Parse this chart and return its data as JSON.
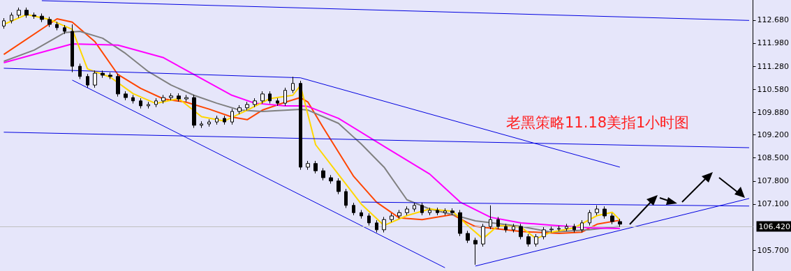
{
  "chart_data": {
    "type": "candlestick",
    "title": "老黑策略11.18美指1小时图",
    "marker": "none",
    "grid": false,
    "tick_labels": "y",
    "categories": [
      null,
      null,
      null,
      null,
      null,
      null,
      null,
      null,
      null,
      null,
      null,
      null,
      null,
      null,
      null,
      null,
      null,
      null,
      null,
      null,
      null,
      null,
      null,
      null,
      null,
      null,
      null,
      null,
      null,
      null,
      null,
      null,
      null,
      null,
      null,
      null,
      null,
      null,
      null,
      null,
      null,
      null,
      null,
      null,
      null,
      null,
      null,
      null,
      null,
      null,
      null,
      null,
      null,
      null,
      null,
      null,
      null,
      null,
      null,
      null,
      null,
      null,
      null,
      null,
      null,
      null,
      null,
      null,
      null,
      null,
      null,
      null,
      null,
      null,
      null,
      null,
      null,
      null,
      null,
      null,
      null,
      null,
      null,
      null,
      null,
      null,
      null,
      null,
      null,
      null,
      null,
      null,
      null,
      null,
      null,
      null,
      null,
      null,
      null
    ],
    "ylim": [
      105.07,
      113.29
    ],
    "yticks": [
      {
        "value": 112.68,
        "label": "112.680"
      },
      {
        "value": 111.98,
        "label": "111.980"
      },
      {
        "value": 111.28,
        "label": "111.280"
      },
      {
        "value": 110.58,
        "label": "110.580"
      },
      {
        "value": 109.88,
        "label": "109.880"
      },
      {
        "value": 109.2,
        "label": "109.200"
      },
      {
        "value": 108.5,
        "label": "108.500"
      },
      {
        "value": 107.8,
        "label": "107.800"
      },
      {
        "value": 107.1,
        "label": "107.100"
      },
      {
        "value": 105.7,
        "label": "105.700"
      }
    ],
    "ref_lines": [
      {
        "axis": "y",
        "value": 106.42,
        "label": "106.420",
        "color": "#c0c0c0"
      }
    ],
    "series": [
      {
        "color": "#000000",
        "ohlc": [
          [
            112.5,
            112.74,
            112.42,
            112.66
          ],
          [
            112.66,
            112.91,
            112.58,
            112.83
          ],
          [
            112.83,
            113.06,
            112.75,
            112.98
          ],
          [
            112.98,
            113.06,
            112.75,
            112.83
          ],
          [
            112.83,
            112.91,
            112.72,
            112.8
          ],
          [
            112.8,
            112.88,
            112.62,
            112.7
          ],
          [
            112.7,
            112.78,
            112.47,
            112.55
          ],
          [
            112.55,
            112.63,
            112.37,
            112.45
          ],
          [
            112.45,
            112.53,
            112.26,
            112.34
          ],
          [
            112.34,
            112.55,
            111.1,
            111.28
          ],
          [
            111.28,
            111.36,
            110.89,
            110.97
          ],
          [
            110.97,
            111.05,
            110.63,
            110.71
          ],
          [
            110.71,
            111.15,
            110.63,
            111.07
          ],
          [
            111.07,
            111.15,
            110.93,
            111.01
          ],
          [
            111.01,
            111.09,
            110.89,
            110.97
          ],
          [
            110.97,
            111.05,
            110.36,
            110.44
          ],
          [
            110.44,
            110.52,
            110.25,
            110.33
          ],
          [
            110.33,
            110.41,
            110.15,
            110.23
          ],
          [
            110.23,
            110.31,
            110.0,
            110.08
          ],
          [
            110.08,
            110.2,
            110.0,
            110.12
          ],
          [
            110.12,
            110.31,
            110.04,
            110.23
          ],
          [
            110.23,
            110.41,
            110.15,
            110.33
          ],
          [
            110.33,
            110.46,
            110.25,
            110.38
          ],
          [
            110.38,
            110.46,
            110.21,
            110.29
          ],
          [
            110.29,
            110.41,
            110.21,
            110.33
          ],
          [
            110.33,
            110.41,
            109.41,
            109.49
          ],
          [
            109.49,
            109.61,
            109.41,
            109.53
          ],
          [
            109.53,
            109.67,
            109.45,
            109.59
          ],
          [
            109.59,
            109.78,
            109.51,
            109.7
          ],
          [
            109.7,
            109.78,
            109.51,
            109.59
          ],
          [
            109.59,
            109.99,
            109.51,
            109.91
          ],
          [
            109.91,
            110.1,
            109.83,
            110.02
          ],
          [
            110.02,
            110.2,
            109.94,
            110.12
          ],
          [
            110.12,
            110.31,
            110.04,
            110.23
          ],
          [
            110.23,
            110.52,
            110.15,
            110.44
          ],
          [
            110.44,
            110.52,
            110.15,
            110.23
          ],
          [
            110.23,
            110.31,
            110.08,
            110.16
          ],
          [
            110.16,
            110.63,
            110.08,
            110.55
          ],
          [
            110.55,
            110.96,
            110.47,
            110.76
          ],
          [
            110.76,
            110.84,
            108.14,
            108.22
          ],
          [
            108.22,
            108.41,
            108.14,
            108.33
          ],
          [
            108.33,
            108.41,
            108.03,
            108.11
          ],
          [
            108.11,
            108.19,
            107.82,
            107.9
          ],
          [
            107.9,
            107.98,
            107.72,
            107.8
          ],
          [
            107.8,
            107.88,
            107.4,
            107.48
          ],
          [
            107.48,
            107.56,
            106.98,
            107.06
          ],
          [
            107.06,
            107.14,
            106.76,
            106.84
          ],
          [
            106.84,
            106.92,
            106.66,
            106.74
          ],
          [
            106.74,
            106.82,
            106.45,
            106.53
          ],
          [
            106.53,
            106.61,
            106.24,
            106.32
          ],
          [
            106.32,
            106.71,
            106.24,
            106.63
          ],
          [
            106.63,
            106.82,
            106.55,
            106.74
          ],
          [
            106.74,
            106.92,
            106.66,
            106.84
          ],
          [
            106.84,
            107.03,
            106.76,
            106.95
          ],
          [
            106.95,
            107.14,
            106.87,
            107.06
          ],
          [
            107.06,
            107.14,
            106.76,
            106.84
          ],
          [
            106.84,
            106.99,
            106.76,
            106.91
          ],
          [
            106.91,
            106.99,
            106.76,
            106.84
          ],
          [
            106.84,
            106.97,
            106.76,
            106.89
          ],
          [
            106.89,
            106.97,
            106.76,
            106.84
          ],
          [
            106.84,
            106.92,
            106.13,
            106.21
          ],
          [
            106.21,
            106.29,
            105.92,
            106.0
          ],
          [
            106.0,
            106.08,
            105.26,
            105.89
          ],
          [
            105.89,
            106.5,
            105.81,
            106.42
          ],
          [
            106.42,
            107.06,
            106.34,
            106.63
          ],
          [
            106.63,
            106.71,
            106.34,
            106.42
          ],
          [
            106.42,
            106.5,
            106.24,
            106.32
          ],
          [
            106.32,
            106.5,
            106.24,
            106.42
          ],
          [
            106.42,
            106.5,
            106.03,
            106.11
          ],
          [
            106.11,
            106.19,
            105.81,
            105.89
          ],
          [
            105.89,
            106.19,
            105.81,
            106.11
          ],
          [
            106.11,
            106.4,
            106.03,
            106.32
          ],
          [
            106.32,
            106.42,
            106.24,
            106.34
          ],
          [
            106.34,
            106.44,
            106.28,
            106.36
          ],
          [
            106.36,
            106.5,
            106.28,
            106.42
          ],
          [
            106.42,
            106.5,
            106.24,
            106.32
          ],
          [
            106.32,
            106.61,
            106.24,
            106.53
          ],
          [
            106.53,
            106.92,
            106.45,
            106.84
          ],
          [
            106.84,
            107.06,
            106.76,
            106.95
          ],
          [
            106.95,
            107.03,
            106.66,
            106.74
          ],
          [
            106.74,
            106.82,
            106.49,
            106.57
          ],
          [
            106.57,
            106.65,
            106.41,
            106.49
          ],
          null,
          null,
          null,
          null,
          null,
          null,
          null,
          null,
          null,
          null,
          null,
          null,
          null,
          null,
          null,
          null,
          null
        ]
      },
      {
        "type": "line",
        "color": "#ff4500",
        "values": [
          111.64,
          null,
          null,
          null,
          null,
          null,
          null,
          112.72,
          null,
          112.62,
          null,
          null,
          112.02,
          null,
          null,
          111.03,
          null,
          null,
          110.61,
          null,
          null,
          110.29,
          null,
          null,
          110.19,
          null,
          null,
          109.98,
          null,
          null,
          109.74,
          null,
          109.66,
          null,
          109.95,
          null,
          null,
          110.19,
          null,
          110.33,
          110.19,
          null,
          109.42,
          null,
          null,
          null,
          107.94,
          null,
          null,
          107.16,
          null,
          null,
          106.68,
          null,
          null,
          106.63,
          null,
          null,
          null,
          106.78,
          null,
          106.53,
          106.42,
          null,
          null,
          null,
          null,
          null,
          106.27,
          null,
          null,
          null,
          null,
          106.21,
          null,
          null,
          106.25,
          null,
          106.49,
          null,
          null,
          106.61,
          null,
          null,
          null,
          null,
          null,
          null,
          null,
          null,
          null,
          null,
          null,
          null,
          null,
          null,
          null,
          null,
          null
        ]
      },
      {
        "type": "line",
        "color": "#808080",
        "values": [
          111.43,
          null,
          null,
          null,
          111.77,
          null,
          null,
          null,
          112.3,
          null,
          112.34,
          null,
          null,
          112.13,
          null,
          null,
          111.67,
          null,
          null,
          111.12,
          null,
          null,
          110.71,
          null,
          null,
          110.4,
          null,
          null,
          110.16,
          null,
          null,
          109.95,
          null,
          null,
          109.91,
          null,
          null,
          null,
          null,
          109.97,
          109.95,
          null,
          null,
          null,
          109.55,
          null,
          null,
          108.92,
          null,
          null,
          108.22,
          null,
          null,
          107.23,
          null,
          null,
          106.95,
          null,
          null,
          106.78,
          null,
          null,
          106.59,
          null,
          null,
          null,
          null,
          null,
          106.42,
          null,
          null,
          null,
          106.25,
          null,
          null,
          null,
          null,
          106.32,
          null,
          null,
          null,
          106.42,
          null,
          null,
          null,
          null,
          null,
          null,
          null,
          null,
          null,
          null,
          null,
          null,
          null,
          null,
          null,
          null,
          null
        ]
      },
      {
        "type": "line",
        "color": "#ff00ff",
        "values": [
          111.39,
          null,
          null,
          null,
          111.64,
          null,
          null,
          null,
          null,
          111.96,
          null,
          null,
          null,
          null,
          null,
          111.92,
          null,
          null,
          null,
          null,
          null,
          111.54,
          null,
          null,
          null,
          111.03,
          null,
          null,
          null,
          null,
          110.4,
          null,
          null,
          110.16,
          null,
          null,
          null,
          110.08,
          null,
          110.08,
          110.06,
          null,
          null,
          null,
          109.7,
          null,
          null,
          null,
          null,
          null,
          108.85,
          null,
          null,
          null,
          null,
          null,
          108.01,
          null,
          null,
          null,
          107.16,
          null,
          null,
          null,
          106.7,
          null,
          null,
          null,
          106.53,
          null,
          null,
          null,
          106.46,
          null,
          null,
          null,
          null,
          106.38,
          null,
          null,
          null,
          106.36,
          null,
          null,
          null,
          null,
          null,
          null,
          null,
          null,
          null,
          null,
          null,
          null,
          null,
          null,
          null,
          null,
          null
        ]
      },
      {
        "type": "line",
        "color": "#ffd700",
        "values": [
          112.55,
          null,
          null,
          112.85,
          null,
          null,
          112.7,
          null,
          null,
          112.4,
          null,
          111.2,
          null,
          null,
          110.95,
          null,
          null,
          110.45,
          null,
          null,
          110.15,
          null,
          null,
          110.3,
          null,
          null,
          109.75,
          null,
          null,
          109.62,
          null,
          null,
          109.95,
          null,
          null,
          110.3,
          null,
          null,
          110.4,
          110.7,
          null,
          108.9,
          null,
          null,
          108.0,
          null,
          null,
          107.1,
          null,
          null,
          106.45,
          null,
          null,
          106.75,
          null,
          null,
          106.95,
          null,
          null,
          106.88,
          null,
          106.45,
          null,
          106.05,
          null,
          106.45,
          null,
          null,
          106.4,
          null,
          106.05,
          null,
          106.25,
          null,
          null,
          106.38,
          null,
          null,
          106.75,
          null,
          106.85,
          106.62,
          null,
          null,
          null,
          null,
          null,
          null,
          null,
          null,
          null,
          null,
          null,
          null,
          null,
          null,
          null,
          null,
          null
        ]
      },
      {
        "type": "line",
        "color": "#0000e0",
        "values": [
          null,
          null,
          null,
          null,
          null,
          113.27,
          null,
          null,
          null,
          null,
          null,
          null,
          null,
          null,
          null,
          null,
          null,
          null,
          null,
          null,
          null,
          null,
          null,
          null,
          null,
          null,
          null,
          null,
          null,
          null,
          null,
          null,
          null,
          null,
          null,
          null,
          null,
          null,
          null,
          null,
          null,
          null,
          null,
          null,
          null,
          null,
          null,
          null,
          null,
          null,
          null,
          null,
          null,
          null,
          null,
          null,
          null,
          null,
          null,
          null,
          null,
          null,
          null,
          null,
          null,
          null,
          null,
          null,
          null,
          null,
          null,
          null,
          null,
          null,
          null,
          null,
          null,
          null,
          null,
          null,
          null,
          null,
          null,
          null,
          null,
          null,
          null,
          null,
          null,
          null,
          null,
          null,
          null,
          null,
          null,
          null,
          null,
          null,
          112.67
        ]
      },
      {
        "type": "line",
        "color": "#0000e0",
        "values": [
          111.22,
          null,
          null,
          null,
          null,
          null,
          null,
          null,
          null,
          null,
          null,
          null,
          null,
          null,
          null,
          null,
          null,
          null,
          null,
          null,
          null,
          null,
          null,
          null,
          null,
          null,
          null,
          null,
          null,
          null,
          null,
          null,
          null,
          null,
          null,
          null,
          null,
          null,
          null,
          110.93,
          null,
          null,
          null,
          null,
          null,
          null,
          null,
          null,
          null,
          null,
          null,
          null,
          null,
          null,
          null,
          null,
          null,
          null,
          null,
          null,
          null,
          null,
          null,
          null,
          null,
          null,
          null,
          null,
          null,
          null,
          null,
          null,
          null,
          null,
          null,
          null,
          null,
          null,
          null,
          null,
          null,
          108.22,
          null,
          null,
          null,
          null,
          null,
          null,
          null,
          null,
          null,
          null,
          null,
          null,
          null,
          null,
          null,
          null,
          null
        ]
      },
      {
        "type": "line",
        "color": "#0000e0",
        "values": [
          109.28,
          null,
          null,
          null,
          null,
          null,
          null,
          null,
          null,
          null,
          null,
          null,
          null,
          null,
          null,
          null,
          null,
          null,
          null,
          null,
          null,
          null,
          null,
          null,
          null,
          null,
          null,
          null,
          null,
          null,
          null,
          null,
          null,
          null,
          null,
          null,
          null,
          null,
          null,
          null,
          null,
          null,
          null,
          null,
          null,
          null,
          null,
          null,
          null,
          null,
          null,
          null,
          null,
          null,
          null,
          null,
          null,
          null,
          null,
          null,
          null,
          null,
          null,
          null,
          null,
          null,
          null,
          null,
          null,
          null,
          null,
          null,
          null,
          null,
          null,
          null,
          null,
          null,
          null,
          null,
          null,
          null,
          null,
          null,
          null,
          null,
          null,
          null,
          null,
          null,
          null,
          null,
          null,
          null,
          null,
          null,
          null,
          null,
          108.81
        ]
      },
      {
        "type": "line",
        "color": "#0000e0",
        "values": [
          null,
          null,
          null,
          null,
          null,
          null,
          null,
          null,
          null,
          null,
          null,
          null,
          null,
          null,
          null,
          null,
          null,
          null,
          null,
          null,
          null,
          null,
          null,
          null,
          null,
          null,
          null,
          null,
          null,
          null,
          null,
          null,
          null,
          null,
          null,
          null,
          null,
          null,
          null,
          null,
          null,
          null,
          null,
          null,
          null,
          null,
          null,
          107.16,
          null,
          null,
          null,
          null,
          null,
          null,
          null,
          null,
          null,
          null,
          null,
          null,
          null,
          null,
          null,
          null,
          null,
          null,
          null,
          null,
          null,
          null,
          null,
          null,
          null,
          null,
          null,
          null,
          null,
          null,
          null,
          null,
          null,
          null,
          null,
          null,
          null,
          null,
          null,
          null,
          null,
          null,
          null,
          null,
          null,
          null,
          null,
          null,
          null,
          null,
          107.04
        ]
      },
      {
        "type": "line",
        "color": "#0000e0",
        "values": [
          null,
          null,
          null,
          null,
          null,
          null,
          null,
          null,
          null,
          110.86,
          null,
          null,
          null,
          null,
          null,
          null,
          null,
          null,
          null,
          null,
          null,
          null,
          null,
          null,
          null,
          null,
          null,
          null,
          null,
          null,
          null,
          null,
          null,
          null,
          null,
          null,
          null,
          null,
          null,
          null,
          null,
          null,
          null,
          null,
          null,
          null,
          null,
          null,
          null,
          null,
          null,
          null,
          null,
          null,
          null,
          null,
          null,
          null,
          105.17,
          null,
          null,
          null,
          null,
          null,
          null,
          null,
          null,
          null,
          null,
          null,
          null,
          null,
          null,
          null,
          null,
          null,
          null,
          null,
          null,
          null,
          null,
          null,
          null,
          null,
          null,
          null,
          null,
          null,
          null,
          null,
          null,
          null,
          null,
          null,
          null,
          null,
          null,
          null,
          null
        ]
      },
      {
        "type": "line",
        "color": "#0000e0",
        "values": [
          null,
          null,
          null,
          null,
          null,
          null,
          null,
          null,
          null,
          null,
          null,
          null,
          null,
          null,
          null,
          null,
          null,
          null,
          null,
          null,
          null,
          null,
          null,
          null,
          null,
          null,
          null,
          null,
          null,
          null,
          null,
          null,
          null,
          null,
          null,
          null,
          null,
          null,
          null,
          null,
          null,
          null,
          null,
          null,
          null,
          null,
          null,
          null,
          null,
          null,
          null,
          null,
          null,
          null,
          null,
          null,
          null,
          null,
          null,
          null,
          null,
          null,
          105.22,
          null,
          null,
          null,
          null,
          null,
          null,
          null,
          null,
          null,
          null,
          null,
          null,
          null,
          null,
          null,
          null,
          null,
          null,
          null,
          null,
          null,
          null,
          null,
          null,
          null,
          null,
          null,
          null,
          null,
          null,
          null,
          null,
          null,
          null,
          null,
          107.27
        ]
      }
    ]
  }
}
